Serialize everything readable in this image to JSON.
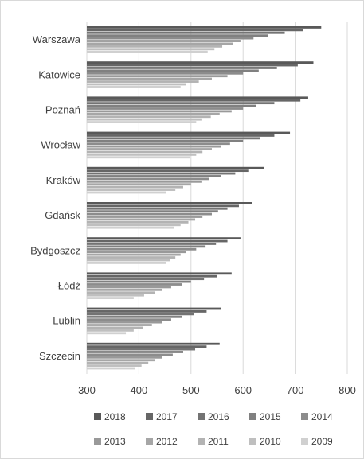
{
  "chart_data": {
    "type": "bar",
    "orientation": "horizontal",
    "title": "",
    "xlabel": "",
    "ylabel": "",
    "xlim": [
      300,
      800
    ],
    "xticks": [
      "300",
      "400",
      "500",
      "600",
      "700",
      "800"
    ],
    "grid": "vertical",
    "legend_position": "bottom",
    "categories": [
      "Warszawa",
      "Katowice",
      "Poznań",
      "Wrocław",
      "Kraków",
      "Gdańsk",
      "Bydgoszcz",
      "Łódź",
      "Lublin",
      "Szczecin"
    ],
    "series": [
      {
        "name": "2018",
        "color": "#595959",
        "values": [
          750,
          735,
          725,
          690,
          640,
          618,
          595,
          578,
          558,
          555
        ]
      },
      {
        "name": "2017",
        "color": "#666666",
        "values": [
          715,
          705,
          710,
          660,
          610,
          592,
          570,
          550,
          530,
          530
        ]
      },
      {
        "name": "2016",
        "color": "#737373",
        "values": [
          680,
          665,
          660,
          632,
          585,
          570,
          548,
          525,
          505,
          508
        ]
      },
      {
        "name": "2015",
        "color": "#808080",
        "values": [
          648,
          630,
          625,
          600,
          558,
          552,
          528,
          500,
          482,
          485
        ]
      },
      {
        "name": "2014",
        "color": "#8c8c8c",
        "values": [
          620,
          600,
          600,
          575,
          535,
          540,
          510,
          482,
          462,
          465
        ]
      },
      {
        "name": "2013",
        "color": "#999999",
        "values": [
          595,
          570,
          578,
          558,
          520,
          522,
          490,
          462,
          445,
          445
        ]
      },
      {
        "name": "2012",
        "color": "#a6a6a6",
        "values": [
          580,
          540,
          555,
          540,
          500,
          508,
          480,
          445,
          425,
          430
        ]
      },
      {
        "name": "2011",
        "color": "#b3b3b3",
        "values": [
          560,
          515,
          538,
          522,
          485,
          495,
          470,
          430,
          408,
          418
        ]
      },
      {
        "name": "2010",
        "color": "#bfbfbf",
        "values": [
          545,
          490,
          520,
          510,
          470,
          480,
          460,
          410,
          390,
          405
        ]
      },
      {
        "name": "2009",
        "color": "#d0d0d0",
        "values": [
          532,
          480,
          510,
          498,
          452,
          468,
          452,
          390,
          375,
          393
        ]
      }
    ]
  }
}
